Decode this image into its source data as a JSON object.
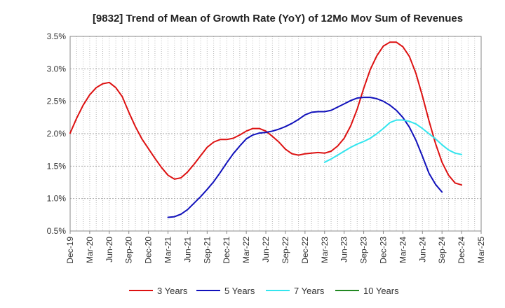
{
  "chart_data": {
    "type": "line",
    "title": "[9832]  Trend of Mean of Growth Rate (YoY) of 12Mo Mov Sum of Revenues",
    "xlabel": "",
    "ylabel": "",
    "ylim": [
      0.5,
      3.5
    ],
    "y_ticks": [
      "0.5%",
      "1.0%",
      "1.5%",
      "2.0%",
      "2.5%",
      "3.0%",
      "3.5%"
    ],
    "x_ticks": [
      "Dec-19",
      "Mar-20",
      "Jun-20",
      "Sep-20",
      "Dec-20",
      "Mar-21",
      "Jun-21",
      "Sep-21",
      "Dec-21",
      "Mar-22",
      "Jun-22",
      "Sep-22",
      "Dec-22",
      "Mar-23",
      "Jun-23",
      "Sep-23",
      "Dec-23",
      "Mar-24",
      "Jun-24",
      "Sep-24",
      "Dec-24",
      "Mar-25"
    ],
    "x_unit": "months since Dec-19",
    "grid": true,
    "legend_position": "bottom",
    "series": [
      {
        "name": "3 Years",
        "color": "#dd1111",
        "start_month": 0,
        "values": [
          2.01,
          2.24,
          2.44,
          2.6,
          2.71,
          2.77,
          2.79,
          2.71,
          2.57,
          2.33,
          2.11,
          1.92,
          1.77,
          1.62,
          1.48,
          1.36,
          1.3,
          1.32,
          1.41,
          1.53,
          1.66,
          1.79,
          1.87,
          1.91,
          1.91,
          1.93,
          1.98,
          2.04,
          2.08,
          2.08,
          2.04,
          1.96,
          1.87,
          1.76,
          1.69,
          1.67,
          1.69,
          1.7,
          1.71,
          1.7,
          1.73,
          1.81,
          1.93,
          2.12,
          2.38,
          2.7,
          2.99,
          3.2,
          3.35,
          3.41,
          3.41,
          3.34,
          3.19,
          2.93,
          2.58,
          2.2,
          1.85,
          1.56,
          1.36,
          1.24,
          1.21
        ]
      },
      {
        "name": "5 Years",
        "color": "#1111bb",
        "start_month": 15,
        "values": [
          0.71,
          0.72,
          0.76,
          0.83,
          0.93,
          1.03,
          1.14,
          1.26,
          1.4,
          1.55,
          1.69,
          1.81,
          1.92,
          1.98,
          2.01,
          2.02,
          2.04,
          2.07,
          2.11,
          2.16,
          2.22,
          2.29,
          2.33,
          2.34,
          2.34,
          2.36,
          2.41,
          2.46,
          2.51,
          2.55,
          2.56,
          2.56,
          2.54,
          2.5,
          2.44,
          2.36,
          2.25,
          2.1,
          1.9,
          1.65,
          1.39,
          1.22,
          1.1
        ]
      },
      {
        "name": "7 Years",
        "color": "#33e5ee",
        "start_month": 39,
        "values": [
          1.56,
          1.61,
          1.67,
          1.73,
          1.79,
          1.84,
          1.88,
          1.93,
          2.0,
          2.08,
          2.17,
          2.21,
          2.21,
          2.19,
          2.15,
          2.08,
          2.0,
          1.92,
          1.83,
          1.75,
          1.7,
          1.68
        ]
      },
      {
        "name": "10 Years",
        "color": "#228822",
        "start_month": 0,
        "values": []
      }
    ]
  }
}
